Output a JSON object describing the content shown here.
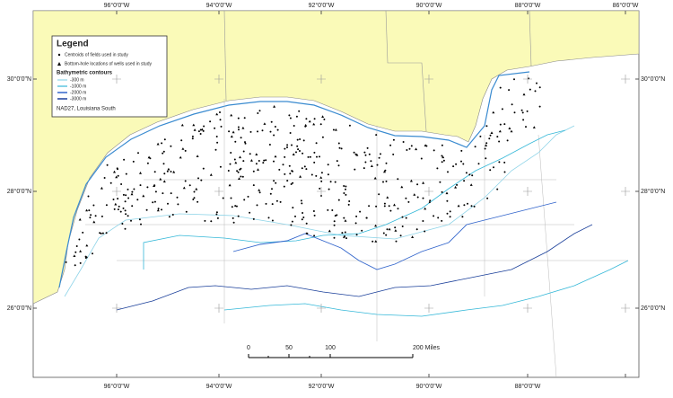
{
  "map": {
    "longitude_labels_top": [
      "96°0'0\"W",
      "94°0'0\"W",
      "92°0'0\"W",
      "90°0'0\"W",
      "88°0'0\"W",
      "86°0'0\"W"
    ],
    "longitude_labels_bottom": [
      "96°0'0\"W",
      "94°0'0\"W",
      "92°0'0\"W",
      "90°0'0\"W",
      "88°0'0\"W"
    ],
    "latitude_labels_left": [
      "30°0'0\"N",
      "28°0'0\"N",
      "26°0'0\"N"
    ],
    "latitude_labels_right": [
      "30°0'0\"N",
      "28°0'0\"N",
      "26°0'0\"N"
    ],
    "legend": {
      "title": "Legend",
      "items": [
        "Centroids of fields used in study",
        "Bottom-hole locations of wells used in study"
      ],
      "contours_title": "Bathymetric contours",
      "contours": [
        "-300 m",
        "-1000 m",
        "-2000 m",
        "-3000 m"
      ],
      "projection": "NAD27, Louisiana South"
    },
    "scale_bar": {
      "labels": [
        "0",
        "50",
        "100",
        "200 Miles"
      ]
    }
  }
}
